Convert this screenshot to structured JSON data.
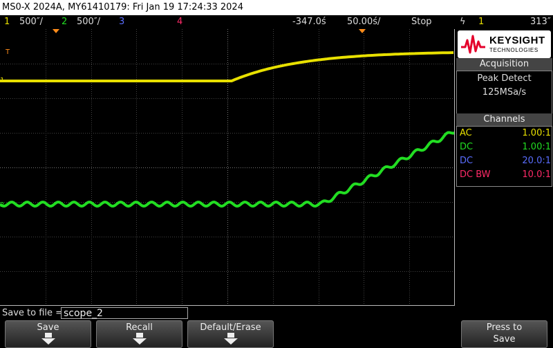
{
  "title": "MS0-X 2024A, MY61410179: Fri Jan 19 17:24:33 2024",
  "status": {
    "ch1_num": "1",
    "ch1_scale": "500″/",
    "ch2_num": "2",
    "ch2_scale": "500″/",
    "ch3_num": "3",
    "ch4_num": "4",
    "time_offset": "-347.0ś",
    "time_scale": "50.00ś/",
    "run_state": "Stop",
    "trigger_icon": "ϟ",
    "trigger_source": "1",
    "trigger_level": "313″"
  },
  "logo": {
    "brand": "KEYSIGHT",
    "sub": "TECHNOLOGIES",
    "color": "#e4002b"
  },
  "acquisition": {
    "header": "Acquisition",
    "mode": "Peak Detect",
    "rate": "125MSa/s"
  },
  "channels": {
    "header": "Channels",
    "rows": [
      {
        "coupling": "AC",
        "probe": "1.00:1",
        "color": "#e8e000"
      },
      {
        "coupling": "DC",
        "probe": "1.00:1",
        "color": "#22dd22"
      },
      {
        "coupling": "DC",
        "probe": "20.0:1",
        "color": "#5a6dff"
      },
      {
        "coupling": "DC BW",
        "probe": "10.0:1",
        "color": "#ff2a68"
      }
    ]
  },
  "markers": {
    "trigger": "T",
    "ch1": "1",
    "ch2": "2"
  },
  "save": {
    "label": "Save to file =",
    "filename": "scope_2"
  },
  "softkeys": {
    "save": "Save",
    "recall": "Recall",
    "default_erase": "Default/Erase",
    "press_to": "Press to",
    "press_save": "Save"
  },
  "colors": {
    "ch1": "#e8e000",
    "ch2": "#22dd22",
    "ch3": "#5a6dff",
    "ch4": "#ff2a68",
    "trigger_marker": "#ff8c1a"
  }
}
